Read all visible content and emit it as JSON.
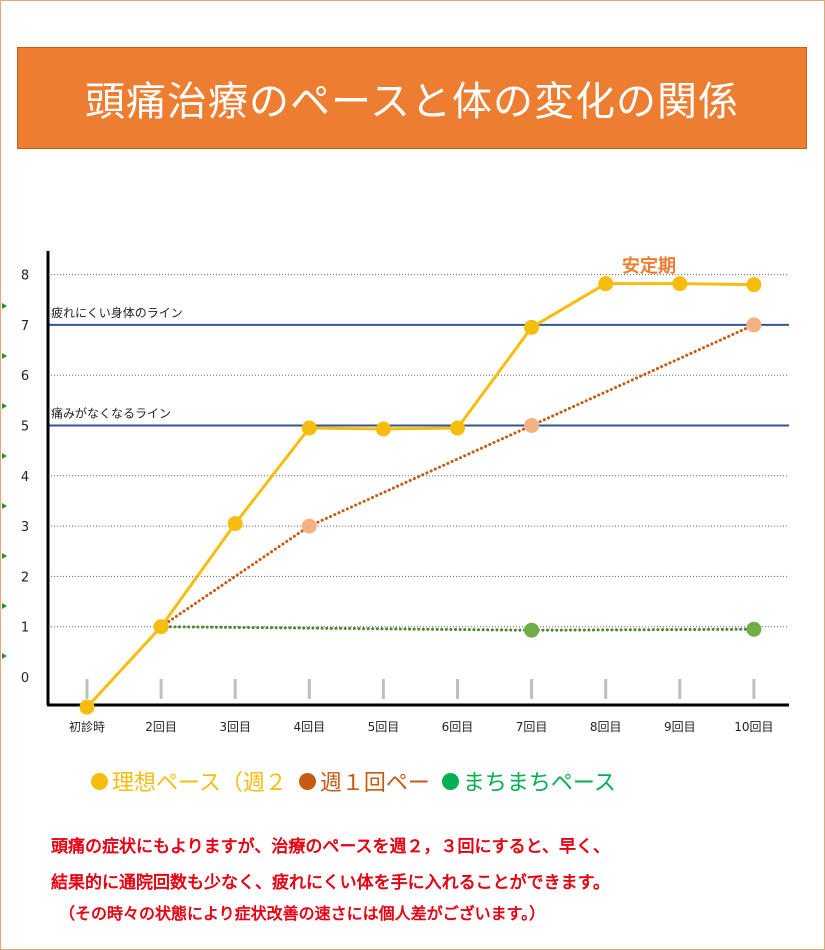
{
  "title": "頭痛治療のペースと体の変化の関係",
  "chart_data": {
    "type": "line",
    "categories": [
      "初診時",
      "2回目",
      "3回目",
      "4回目",
      "5回目",
      "6回目",
      "7回目",
      "8回目",
      "9回目",
      "10回目"
    ],
    "ylim": [
      0,
      8
    ],
    "yticks": [
      "0",
      "1",
      "2",
      "3",
      "4",
      "5",
      "6",
      "7",
      "8"
    ],
    "grid": "dotted horizontal",
    "series": [
      {
        "name": "理想ペース（週２",
        "color": "#f5bd0e",
        "style": "solid",
        "points": [
          [
            0,
            -0.6
          ],
          [
            1,
            1
          ],
          [
            2,
            3.05
          ],
          [
            3,
            4.95
          ],
          [
            4,
            4.93
          ],
          [
            5,
            4.95
          ],
          [
            6,
            6.95
          ],
          [
            7,
            7.82
          ],
          [
            8,
            7.82
          ],
          [
            9,
            7.8
          ]
        ]
      },
      {
        "name": "週１回ペー",
        "color": "#c55a11",
        "marker_color": "#f4b183",
        "style": "dotted",
        "points": [
          [
            1,
            1
          ],
          [
            3,
            3
          ],
          [
            6,
            5
          ],
          [
            9,
            7
          ]
        ]
      },
      {
        "name": "まちまちペース",
        "color": "#548235",
        "marker_color": "#70ad47",
        "style": "dotted",
        "points": [
          [
            1,
            1
          ],
          [
            6,
            0.93
          ],
          [
            9,
            0.95
          ]
        ]
      }
    ],
    "reference_lines": [
      {
        "label": "疲れにくい身体のライン",
        "y": 7,
        "color": "#2f5597"
      },
      {
        "label": "痛みがなくなるライン",
        "y": 5,
        "color": "#2f5597"
      }
    ],
    "annotations": [
      {
        "text": "安定期",
        "color": "#ed7d31"
      }
    ]
  },
  "legend": [
    {
      "label": "理想ペース（週２",
      "color": "#f5bd0e",
      "text_color": "#f5bd0e"
    },
    {
      "label": "週１回ペー",
      "color": "#c55a11",
      "text_color": "#c55a11"
    },
    {
      "label": "まちまちペース",
      "color": "#00b050",
      "text_color": "#00b050"
    }
  ],
  "notes": [
    "頭痛の症状にもよりますが、治療のペースを週２，３回にすると、早く、",
    "結果的に通院回数も少なく、疲れにくい体を手に入れることができます。",
    "（その時々の状態により症状改善の速さには個人差がございます。）"
  ]
}
